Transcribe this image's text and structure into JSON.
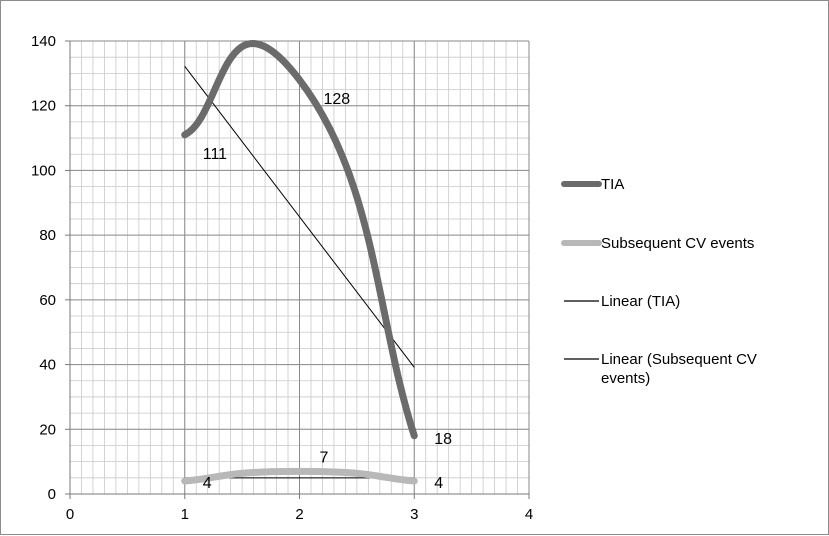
{
  "chart_data": {
    "type": "scatter",
    "title": "",
    "xlabel": "",
    "ylabel": "",
    "xlim": [
      0,
      4
    ],
    "ylim": [
      0,
      140
    ],
    "x_ticks": [
      "0",
      "1",
      "2",
      "3",
      "4"
    ],
    "y_ticks": [
      "0",
      "20",
      "40",
      "60",
      "80",
      "100",
      "120",
      "140"
    ],
    "grid": true,
    "minor_grid": true,
    "legend_position": "right",
    "series": [
      {
        "name": "TIA",
        "x": [
          1,
          2,
          3
        ],
        "y": [
          111,
          128,
          18
        ],
        "labels": [
          "111",
          "128",
          "18"
        ],
        "smoothed": true,
        "color": "#6b6b6b",
        "line_width": "thick"
      },
      {
        "name": "Subsequent CV events",
        "x": [
          1,
          2,
          3
        ],
        "y": [
          4,
          7,
          4
        ],
        "labels": [
          "4",
          "7",
          "4"
        ],
        "smoothed": true,
        "color": "#b8b8b8",
        "line_width": "thick"
      }
    ],
    "trendlines": [
      {
        "name": "Linear (TIA)",
        "of": "TIA",
        "type": "linear",
        "color": "#000000"
      },
      {
        "name": "Linear (Subsequent CV events)",
        "of": "Subsequent CV events",
        "type": "linear",
        "color": "#000000"
      }
    ],
    "legend": [
      {
        "label": "TIA",
        "color": "#6b6b6b",
        "style": "thick"
      },
      {
        "label": "Subsequent CV events",
        "color": "#b8b8b8",
        "style": "thick"
      },
      {
        "label": "Linear (TIA)",
        "color": "#000000",
        "style": "thin"
      },
      {
        "label": "Linear (Subsequent CV events)",
        "color": "#000000",
        "style": "thin",
        "wrapped_lines": [
          "Linear (Subsequent CV",
          "events)"
        ]
      }
    ]
  }
}
